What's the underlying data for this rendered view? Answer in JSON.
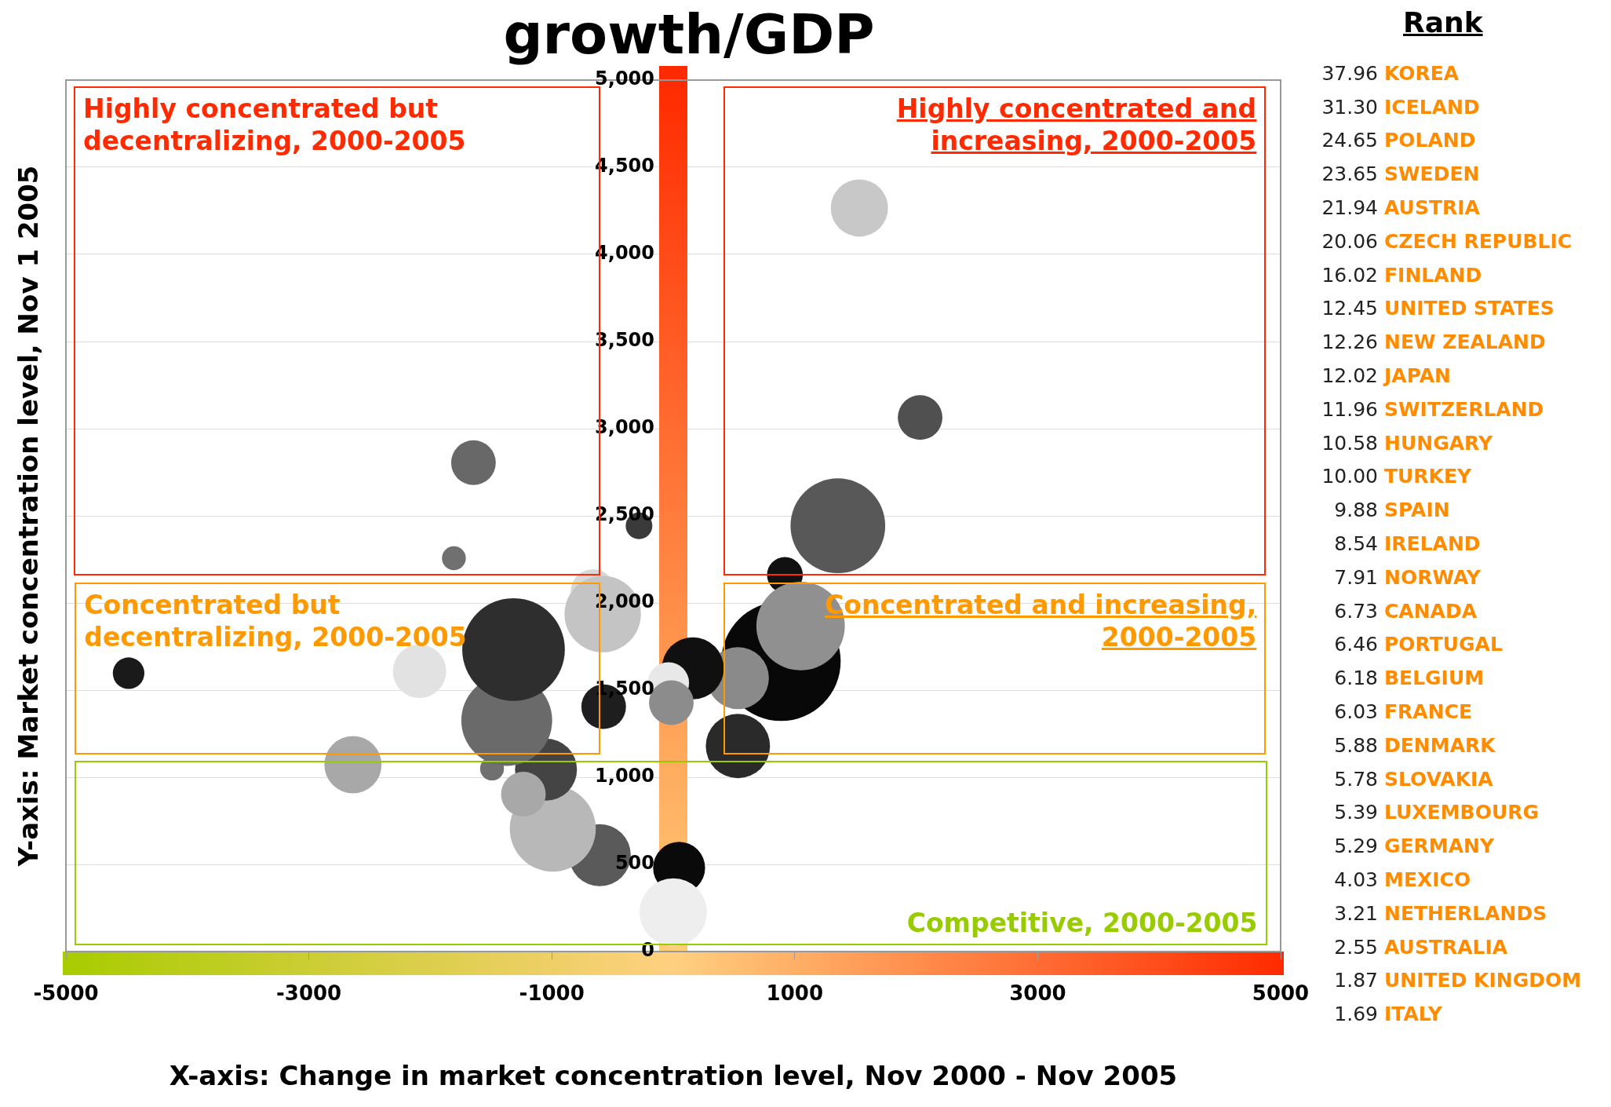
{
  "chart_data": {
    "type": "bubble",
    "title": "growth/GDP",
    "xlabel": "X-axis: Change in market concentration level, Nov 2000 - Nov 2005",
    "ylabel": "Y-axis: Market concentration level, Nov 1 2005",
    "x": [
      1532,
      2032,
      1355,
      919,
      887,
      1048,
      532,
      532,
      161,
      -40,
      -16,
      48,
      0,
      -282,
      -661,
      -581,
      -573,
      -605,
      -992,
      -1048,
      -1234,
      -1492,
      -1371,
      -1315,
      -1645,
      -1806,
      -2089,
      -2637,
      -4484
    ],
    "values": [
      4266,
      3064,
      2443,
      2161,
      1665,
      1868,
      1569,
      1179,
      1625,
      1541,
      1428,
      480,
      226,
      2443,
      2065,
      1936,
      1405,
      553,
      705,
      1044,
      903,
      1050,
      1326,
      1733,
      2805,
      2257,
      1608,
      1072,
      1597
    ],
    "sizes": [
      0.23,
      0.14,
      0.63,
      0.09,
      1,
      0.55,
      0.27,
      0.29,
      0.27,
      0.12,
      0.14,
      0.19,
      0.32,
      0.05,
      0.14,
      0.41,
      0.14,
      0.27,
      0.52,
      0.27,
      0.14,
      0.04,
      0.58,
      0.74,
      0.14,
      0.04,
      0.2,
      0.23,
      0.07
    ],
    "colors": [
      "#c8c8c8",
      "#505050",
      "#585858",
      "#111111",
      "#080808",
      "#909090",
      "#8a8a8a",
      "#2a2a2a",
      "#101010",
      "#e8e8e8",
      "#8c8c8c",
      "#0a0a0a",
      "#eeeeee",
      "#3a3a3a",
      "#d8d8d8",
      "#c4c4c4",
      "#1e1e1e",
      "#5a5a5a",
      "#b8b8b8",
      "#444444",
      "#a8a8a8",
      "#707070",
      "#6a6a6a",
      "#2e2e2e",
      "#686868",
      "#707070",
      "#e2e2e2",
      "#a8a8a8",
      "#1a1a1a"
    ],
    "xlim": [
      -5000,
      5000
    ],
    "xticks": [
      -5000,
      -3000,
      -1000,
      1000,
      3000,
      5000
    ],
    "ylim": [
      0,
      5000
    ],
    "yticks": [
      0,
      500,
      {
        "value": 1000,
        "label": "1,000"
      },
      {
        "value": 1500,
        "label": "1,500"
      },
      {
        "value": 2000,
        "label": "2,000"
      },
      {
        "value": 2500,
        "label": "2,500"
      },
      {
        "value": 3000,
        "label": "3,000"
      },
      {
        "value": 3500,
        "label": "3,500"
      },
      {
        "value": 4000,
        "label": "4,000"
      },
      {
        "value": 4500,
        "label": "4,500"
      },
      {
        "value": 5000,
        "label": "5,000"
      }
    ],
    "grid": "y",
    "annotations": [
      "Highly concentrated but decentralizing, 2000-2005",
      "Highly concentrated and increasing, 2000-2005",
      "Concentrated but decentralizing, 2000-2005",
      "Concentrated and increasing, 2000-2005",
      "Competitive, 2000-2005",
      "Rank",
      "37.96 KOREA",
      "31.30 ICELAND",
      "24.65 POLAND",
      "23.65 SWEDEN",
      "21.94 AUSTRIA",
      "20.06 CZECH REPUBLIC",
      "16.02 FINLAND",
      "12.45 UNITED STATES",
      "12.26 NEW ZEALAND",
      "12.02 JAPAN",
      "11.96 SWITZERLAND",
      "10.58 HUNGARY",
      "10.00 TURKEY",
      "9.88 SPAIN",
      "8.54 IRELAND",
      "7.91 NORWAY",
      "6.73 CANADA",
      "6.46 PORTUGAL",
      "6.18 BELGIUM",
      "6.03 FRANCE",
      "5.88 DENMARK",
      "5.78 SLOVAKIA",
      "5.39 LUXEMBOURG",
      "5.29 GERMANY",
      "4.03 MEXICO",
      "3.21 NETHERLANDS",
      "2.55 AUSTRALIA",
      "1.87 UNITED KINGDOM",
      "1.69 ITALY"
    ]
  }
}
